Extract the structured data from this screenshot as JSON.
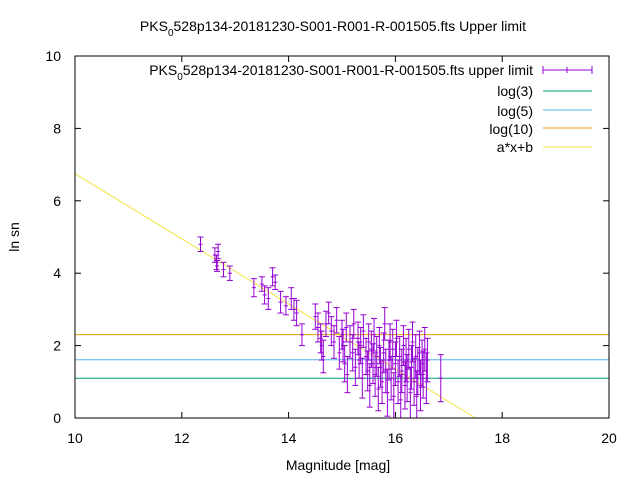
{
  "chart_data": {
    "type": "scatter",
    "title": "PKS 0528p134-20181230-S001-R001-R-001505.fts Upper limit",
    "title_parts": {
      "pre": "PKS",
      "sub": "0",
      "post": "528p134-20181230-S001-R001-R-001505.fts Upper limit"
    },
    "xlabel": "Magnitude [mag]",
    "ylabel": "ln sn",
    "xlim": [
      10,
      20
    ],
    "ylim": [
      0,
      10
    ],
    "x_ticks": [
      10,
      12,
      14,
      16,
      18,
      20
    ],
    "y_ticks": [
      0,
      2,
      4,
      6,
      8,
      10
    ],
    "x_tick_labels": [
      "10",
      "12",
      "14",
      "16",
      "18",
      "20"
    ],
    "y_tick_labels": [
      "0",
      "2",
      "4",
      "6",
      "8",
      "10"
    ],
    "grid": false,
    "legend_position": "top-right",
    "legend": {
      "data": {
        "pre": "PKS",
        "sub": "0",
        "post": "528p134-20181230-S001-R001-R-001505.fts upper limit"
      },
      "log3": "log(3)",
      "log5": "log(5)",
      "log10": "log(10)",
      "fit": "a*x+b"
    },
    "colors": {
      "points": "#9400d3",
      "log3": "#009e73",
      "log5": "#56b4e9",
      "log10": "#e69f00",
      "fit": "#f0e442"
    },
    "hlines": [
      {
        "key": "log3",
        "y": 1.0986
      },
      {
        "key": "log5",
        "y": 1.6094
      },
      {
        "key": "log10",
        "y": 2.3026
      }
    ],
    "fit_line": {
      "slope": -0.9,
      "intercept": 15.75
    },
    "points": [
      [
        12.35,
        4.8,
        0.2
      ],
      [
        12.62,
        4.5,
        0.2
      ],
      [
        12.65,
        4.3,
        0.2
      ],
      [
        12.68,
        4.6,
        0.2
      ],
      [
        12.66,
        4.2,
        0.15
      ],
      [
        12.78,
        4.1,
        0.2
      ],
      [
        12.9,
        4.0,
        0.2
      ],
      [
        13.35,
        3.6,
        0.25
      ],
      [
        13.5,
        3.7,
        0.2
      ],
      [
        13.55,
        3.4,
        0.25
      ],
      [
        13.62,
        3.3,
        0.3
      ],
      [
        13.7,
        3.9,
        0.25
      ],
      [
        13.75,
        3.75,
        0.2
      ],
      [
        13.85,
        3.2,
        0.3
      ],
      [
        13.95,
        3.1,
        0.25
      ],
      [
        14.05,
        3.3,
        0.3
      ],
      [
        14.1,
        3.0,
        0.3
      ],
      [
        14.15,
        2.9,
        0.35
      ],
      [
        14.25,
        2.3,
        0.3
      ],
      [
        14.5,
        2.8,
        0.35
      ],
      [
        14.55,
        2.5,
        0.4
      ],
      [
        14.6,
        2.2,
        0.4
      ],
      [
        14.62,
        2.0,
        0.4
      ],
      [
        14.65,
        1.7,
        0.45
      ],
      [
        14.7,
        2.6,
        0.35
      ],
      [
        14.75,
        2.9,
        0.3
      ],
      [
        14.8,
        2.4,
        0.4
      ],
      [
        14.85,
        2.1,
        0.45
      ],
      [
        14.9,
        2.7,
        0.35
      ],
      [
        14.95,
        1.8,
        0.45
      ],
      [
        15.0,
        2.3,
        0.4
      ],
      [
        15.02,
        2.0,
        0.45
      ],
      [
        15.05,
        1.5,
        0.5
      ],
      [
        15.08,
        2.5,
        0.4
      ],
      [
        15.1,
        1.2,
        0.5
      ],
      [
        15.15,
        2.1,
        0.45
      ],
      [
        15.2,
        1.8,
        0.5
      ],
      [
        15.22,
        2.6,
        0.4
      ],
      [
        15.25,
        1.4,
        0.5
      ],
      [
        15.3,
        2.2,
        0.45
      ],
      [
        15.32,
        1.6,
        0.5
      ],
      [
        15.35,
        2.0,
        0.5
      ],
      [
        15.38,
        1.1,
        0.55
      ],
      [
        15.4,
        2.4,
        0.45
      ],
      [
        15.45,
        1.7,
        0.5
      ],
      [
        15.48,
        1.3,
        0.55
      ],
      [
        15.5,
        2.1,
        0.5
      ],
      [
        15.52,
        0.9,
        0.6
      ],
      [
        15.55,
        1.9,
        0.5
      ],
      [
        15.58,
        1.5,
        0.55
      ],
      [
        15.6,
        2.3,
        0.45
      ],
      [
        15.62,
        1.2,
        0.6
      ],
      [
        15.65,
        1.7,
        0.55
      ],
      [
        15.68,
        0.8,
        0.6
      ],
      [
        15.7,
        2.0,
        0.5
      ],
      [
        15.72,
        1.4,
        0.55
      ],
      [
        15.75,
        1.0,
        0.6
      ],
      [
        15.78,
        1.8,
        0.55
      ],
      [
        15.8,
        2.6,
        0.45
      ],
      [
        15.82,
        1.3,
        0.6
      ],
      [
        15.85,
        0.7,
        0.65
      ],
      [
        15.88,
        1.6,
        0.55
      ],
      [
        15.9,
        2.1,
        0.5
      ],
      [
        15.92,
        1.1,
        0.6
      ],
      [
        15.95,
        1.9,
        0.55
      ],
      [
        15.97,
        0.6,
        0.65
      ],
      [
        16.0,
        1.5,
        0.6
      ],
      [
        16.02,
        2.2,
        0.5
      ],
      [
        16.05,
        1.0,
        0.6
      ],
      [
        16.08,
        1.7,
        0.55
      ],
      [
        16.1,
        0.5,
        0.7
      ],
      [
        16.12,
        1.3,
        0.6
      ],
      [
        16.15,
        2.0,
        0.55
      ],
      [
        16.18,
        0.9,
        0.65
      ],
      [
        16.2,
        1.6,
        0.6
      ],
      [
        16.22,
        1.1,
        0.65
      ],
      [
        16.25,
        1.9,
        0.55
      ],
      [
        16.28,
        0.7,
        0.7
      ],
      [
        16.3,
        1.4,
        0.6
      ],
      [
        16.32,
        2.1,
        0.55
      ],
      [
        16.35,
        1.0,
        0.65
      ],
      [
        16.38,
        1.7,
        0.6
      ],
      [
        16.4,
        0.6,
        0.7
      ],
      [
        16.42,
        1.3,
        0.65
      ],
      [
        16.45,
        1.8,
        0.6
      ],
      [
        16.47,
        0.9,
        0.7
      ],
      [
        16.5,
        1.5,
        0.65
      ],
      [
        16.52,
        1.2,
        0.65
      ],
      [
        16.55,
        1.9,
        0.6
      ],
      [
        16.58,
        1.1,
        0.7
      ],
      [
        16.6,
        1.6,
        0.6
      ],
      [
        16.85,
        1.1,
        0.65
      ]
    ]
  }
}
